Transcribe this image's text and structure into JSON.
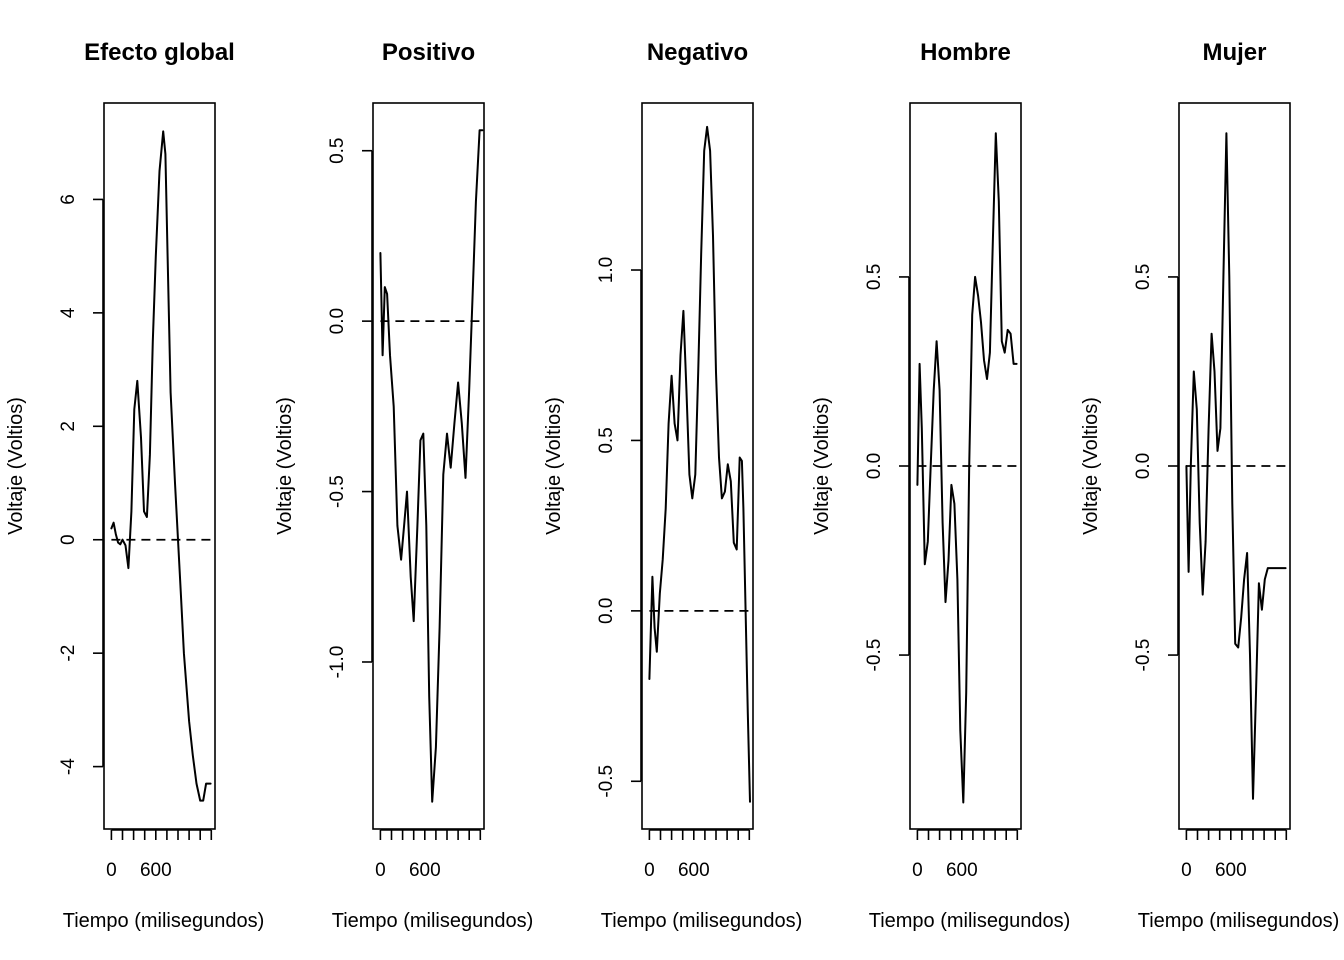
{
  "chart_data": [
    {
      "type": "line",
      "title": "Efecto global",
      "xlabel": "Tiempo (milisegundos)",
      "ylabel": "Voltaje (Voltios)",
      "xlim": [
        -100,
        1400
      ],
      "ylim": [
        -5.1,
        7.7
      ],
      "x_ticks": [
        0,
        150,
        300,
        450,
        600,
        750,
        900,
        1050,
        1200,
        1350
      ],
      "x_tick_labels": [
        {
          "value": 0,
          "label": "0"
        },
        {
          "value": 600,
          "label": "600"
        }
      ],
      "y_ticks": [
        {
          "value": -4,
          "label": "-4"
        },
        {
          "value": -2,
          "label": "-2"
        },
        {
          "value": 0,
          "label": "0"
        },
        {
          "value": 2,
          "label": "2"
        },
        {
          "value": 4,
          "label": "4"
        },
        {
          "value": 6,
          "label": "6"
        }
      ],
      "reference_line": {
        "y": 0,
        "x0": 0,
        "x1": 1350,
        "style": "dashed"
      },
      "series": [
        {
          "x": [
            0,
            30,
            60,
            90,
            120,
            150,
            190,
            230,
            270,
            310,
            350,
            400,
            440,
            480,
            520,
            560,
            600,
            650,
            700,
            730,
            760,
            800,
            860,
            900,
            940,
            980,
            1050,
            1100,
            1150,
            1200,
            1240,
            1280,
            1300,
            1340
          ],
          "y": [
            0.2,
            0.3,
            0.1,
            -0.05,
            -0.08,
            0,
            -0.1,
            -0.5,
            0.5,
            2.3,
            2.8,
            1.8,
            0.5,
            0.4,
            1.5,
            3.5,
            5.0,
            6.5,
            7.2,
            6.8,
            5.0,
            2.6,
            1.0,
            0.0,
            -1.0,
            -2.0,
            -3.2,
            -3.8,
            -4.3,
            -4.6,
            -4.6,
            -4.3,
            -4.3,
            -4.3
          ]
        }
      ]
    },
    {
      "type": "line",
      "title": "Positivo",
      "xlabel": "Tiempo (milisegundos)",
      "ylabel": "Voltaje (Voltios)",
      "xlim": [
        -100,
        1400
      ],
      "ylim": [
        -1.49,
        0.64
      ],
      "x_ticks": [
        0,
        150,
        300,
        450,
        600,
        750,
        900,
        1050,
        1200,
        1350
      ],
      "x_tick_labels": [
        {
          "value": 0,
          "label": "0"
        },
        {
          "value": 600,
          "label": "600"
        }
      ],
      "y_ticks": [
        {
          "value": -1.0,
          "label": "-1.0"
        },
        {
          "value": -0.5,
          "label": "-0.5"
        },
        {
          "value": 0.0,
          "label": "0.0"
        },
        {
          "value": 0.5,
          "label": "0.5"
        }
      ],
      "reference_line": {
        "y": 0,
        "x0": 0,
        "x1": 1350,
        "style": "dashed"
      },
      "series": [
        {
          "x": [
            0,
            30,
            60,
            90,
            130,
            180,
            230,
            280,
            320,
            360,
            410,
            450,
            500,
            540,
            580,
            620,
            660,
            700,
            750,
            800,
            850,
            900,
            950,
            1000,
            1050,
            1100,
            1150,
            1200,
            1250,
            1290,
            1340,
            1380
          ],
          "y": [
            0.2,
            -0.1,
            0.1,
            0.08,
            -0.1,
            -0.25,
            -0.6,
            -0.7,
            -0.6,
            -0.5,
            -0.75,
            -0.88,
            -0.6,
            -0.35,
            -0.33,
            -0.6,
            -1.1,
            -1.41,
            -1.25,
            -0.9,
            -0.45,
            -0.33,
            -0.43,
            -0.3,
            -0.18,
            -0.3,
            -0.46,
            -0.2,
            0.1,
            0.35,
            0.56,
            0.56
          ]
        }
      ]
    },
    {
      "type": "line",
      "title": "Negativo",
      "xlabel": "Tiempo (milisegundos)",
      "ylabel": "Voltaje (Voltios)",
      "xlim": [
        -100,
        1400
      ],
      "ylim": [
        -0.64,
        1.49
      ],
      "x_ticks": [
        0,
        150,
        300,
        450,
        600,
        750,
        900,
        1050,
        1200,
        1350
      ],
      "x_tick_labels": [
        {
          "value": 0,
          "label": "0"
        },
        {
          "value": 600,
          "label": "600"
        }
      ],
      "y_ticks": [
        {
          "value": -0.5,
          "label": "-0.5"
        },
        {
          "value": 0.0,
          "label": "0.0"
        },
        {
          "value": 0.5,
          "label": "0.5"
        },
        {
          "value": 1.0,
          "label": "1.0"
        }
      ],
      "reference_line": {
        "y": 0,
        "x0": 0,
        "x1": 1350,
        "style": "dashed"
      },
      "series": [
        {
          "x": [
            0,
            40,
            70,
            100,
            140,
            180,
            220,
            260,
            300,
            340,
            380,
            420,
            460,
            500,
            540,
            580,
            620,
            660,
            700,
            740,
            780,
            820,
            860,
            900,
            940,
            980,
            1020,
            1060,
            1100,
            1140,
            1180,
            1220,
            1250,
            1270,
            1300,
            1330,
            1360
          ],
          "y": [
            -0.2,
            0.1,
            -0.05,
            -0.12,
            0.05,
            0.15,
            0.3,
            0.55,
            0.69,
            0.55,
            0.5,
            0.75,
            0.88,
            0.65,
            0.4,
            0.33,
            0.4,
            0.7,
            1.05,
            1.35,
            1.42,
            1.35,
            1.1,
            0.7,
            0.45,
            0.33,
            0.35,
            0.43,
            0.38,
            0.2,
            0.18,
            0.45,
            0.44,
            0.3,
            0.0,
            -0.3,
            -0.56
          ]
        }
      ]
    },
    {
      "type": "line",
      "title": "Hombre",
      "xlabel": "Tiempo (milisegundos)",
      "ylabel": "Voltaje (Voltios)",
      "xlim": [
        -100,
        1400
      ],
      "ylim": [
        -0.96,
        0.96
      ],
      "x_ticks": [
        0,
        150,
        300,
        450,
        600,
        750,
        900,
        1050,
        1200,
        1350
      ],
      "x_tick_labels": [
        {
          "value": 0,
          "label": "0"
        },
        {
          "value": 600,
          "label": "600"
        }
      ],
      "y_ticks": [
        {
          "value": -0.5,
          "label": "-0.5"
        },
        {
          "value": 0.0,
          "label": "0.0"
        },
        {
          "value": 0.5,
          "label": "0.5"
        }
      ],
      "reference_line": {
        "y": 0,
        "x0": 0,
        "x1": 1350,
        "style": "dashed"
      },
      "series": [
        {
          "x": [
            0,
            30,
            60,
            100,
            140,
            180,
            220,
            260,
            300,
            340,
            380,
            420,
            460,
            500,
            540,
            580,
            620,
            660,
            700,
            740,
            780,
            820,
            860,
            900,
            940,
            980,
            1020,
            1060,
            1100,
            1140,
            1180,
            1220,
            1260,
            1300,
            1340
          ],
          "y": [
            -0.05,
            0.27,
            0.1,
            -0.26,
            -0.2,
            0.0,
            0.2,
            0.33,
            0.2,
            -0.15,
            -0.36,
            -0.25,
            -0.05,
            -0.1,
            -0.3,
            -0.7,
            -0.89,
            -0.6,
            0.0,
            0.4,
            0.5,
            0.45,
            0.38,
            0.28,
            0.23,
            0.3,
            0.6,
            0.88,
            0.7,
            0.33,
            0.3,
            0.36,
            0.35,
            0.27,
            0.27
          ]
        }
      ]
    },
    {
      "type": "line",
      "title": "Mujer",
      "xlabel": "Tiempo (milisegundos)",
      "ylabel": "Voltaje (Voltios)",
      "xlim": [
        -100,
        1400
      ],
      "ylim": [
        -0.96,
        0.96
      ],
      "x_ticks": [
        0,
        150,
        300,
        450,
        600,
        750,
        900,
        1050,
        1200,
        1350
      ],
      "x_tick_labels": [
        {
          "value": 0,
          "label": "0"
        },
        {
          "value": 600,
          "label": "600"
        }
      ],
      "y_ticks": [
        {
          "value": -0.5,
          "label": "-0.5"
        },
        {
          "value": 0.0,
          "label": "0.0"
        },
        {
          "value": 0.5,
          "label": "0.5"
        }
      ],
      "reference_line": {
        "y": 0,
        "x0": 0,
        "x1": 1350,
        "style": "dashed"
      },
      "series": [
        {
          "x": [
            0,
            30,
            60,
            100,
            140,
            180,
            220,
            260,
            300,
            340,
            380,
            420,
            460,
            500,
            540,
            580,
            620,
            660,
            700,
            740,
            780,
            820,
            860,
            900,
            940,
            980,
            1020,
            1060,
            1100,
            1140,
            1180,
            1220,
            1260,
            1300,
            1340
          ],
          "y": [
            0.0,
            -0.28,
            0.0,
            0.25,
            0.15,
            -0.15,
            -0.34,
            -0.2,
            0.1,
            0.35,
            0.25,
            0.04,
            0.1,
            0.5,
            0.88,
            0.5,
            -0.1,
            -0.47,
            -0.48,
            -0.4,
            -0.3,
            -0.23,
            -0.5,
            -0.88,
            -0.6,
            -0.31,
            -0.38,
            -0.3,
            -0.27,
            -0.27,
            -0.27,
            -0.27,
            -0.27,
            -0.27,
            -0.27
          ]
        }
      ]
    }
  ]
}
